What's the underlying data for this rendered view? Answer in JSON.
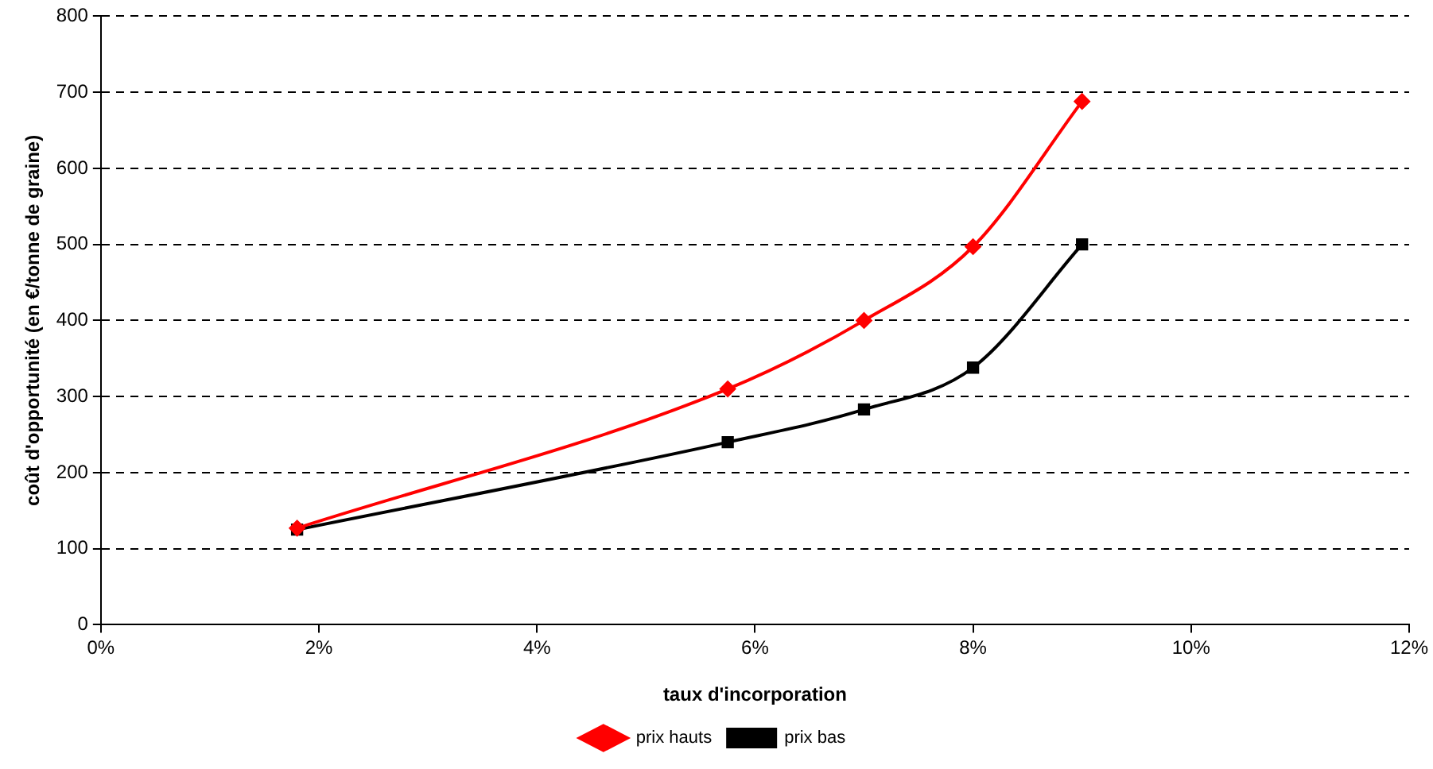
{
  "chart_data": {
    "type": "line",
    "xlabel": "taux d'incorporation",
    "ylabel": "coût d'opportunité (en €/tonne de graine)",
    "xlim": [
      0,
      12
    ],
    "xticks": [
      {
        "value": 0,
        "label": "0%"
      },
      {
        "value": 2,
        "label": "2%"
      },
      {
        "value": 4,
        "label": "4%"
      },
      {
        "value": 6,
        "label": "6%"
      },
      {
        "value": 8,
        "label": "8%"
      },
      {
        "value": 10,
        "label": "10%"
      },
      {
        "value": 12,
        "label": "12%"
      }
    ],
    "ylim": [
      0,
      800
    ],
    "yticks": [
      0,
      100,
      200,
      300,
      400,
      500,
      600,
      700,
      800
    ],
    "grid": "y",
    "legend": "bottom",
    "line_style": "solid",
    "series": [
      {
        "name": "prix bas",
        "color": "#000000",
        "marker": "square",
        "x": [
          1.8,
          5.75,
          7,
          8,
          9
        ],
        "values": [
          125,
          240,
          283,
          338,
          500
        ]
      },
      {
        "name": "prix hauts",
        "color": "#ff0000",
        "marker": "diamond",
        "x": [
          1.8,
          5.75,
          7,
          8,
          9
        ],
        "values": [
          127,
          310,
          400,
          497,
          688
        ]
      }
    ]
  }
}
